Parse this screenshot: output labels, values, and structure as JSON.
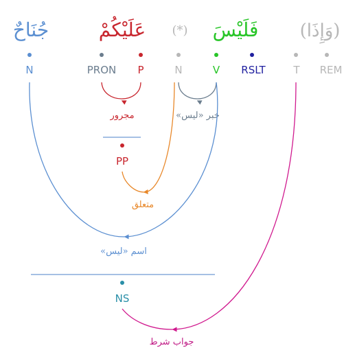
{
  "colors": {
    "grey": "#b7b7b7",
    "blue": "#5b8fd1",
    "pron": "#6b7d8e",
    "red": "#c8262e",
    "green": "#27c527",
    "navy": "#1f1f9f",
    "orange": "#e8882a",
    "teal": "#2a8fa8",
    "magenta": "#d0198e",
    "line": "#6f9ad3"
  },
  "words": [
    {
      "id": "w1",
      "arabic": "(وَإِذَا)"
    },
    {
      "id": "w2",
      "arabic": "فَلَيْسَ"
    },
    {
      "id": "w3",
      "arabic": "(*)"
    },
    {
      "id": "w4",
      "arabic": "عَلَيْكُمْ"
    },
    {
      "id": "w5",
      "arabic": "جُنَاحٌ"
    }
  ],
  "tags": {
    "rem": "REM",
    "t": "T",
    "rslt": "RSLT",
    "v": "V",
    "n_hidden": "N",
    "p": "P",
    "pron": "PRON",
    "n": "N"
  },
  "phrases": {
    "pp": "PP",
    "ns": "NS"
  },
  "relations": {
    "majrur": "مجرور",
    "khabar_laysa": "خبر «ليس»",
    "mutaallaq": "متعلق",
    "ism_laysa": "اسم «ليس»",
    "jawab_shart": "جواب شرط"
  }
}
